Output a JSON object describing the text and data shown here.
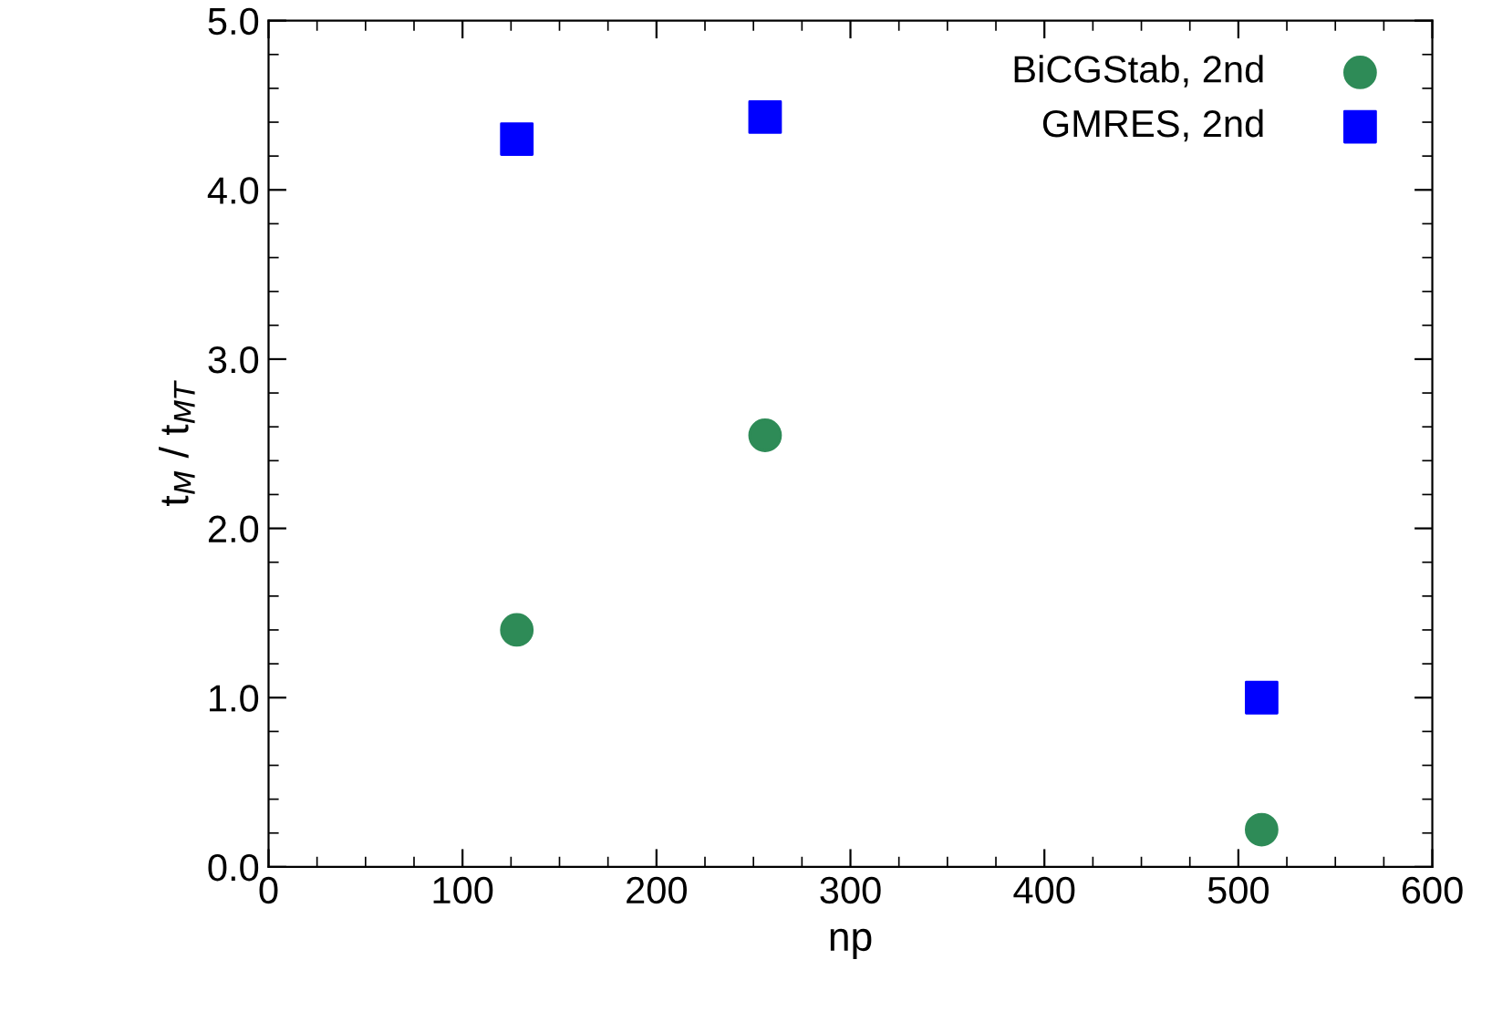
{
  "chart_data": {
    "type": "scatter",
    "xlabel": "np",
    "ylabel": "t$_{M}$ / t$_{MT}$",
    "series": [
      {
        "name": "BiCGStab, 2nd",
        "color": "#2e8b57",
        "marker": "circle",
        "x": [
          128,
          256,
          512
        ],
        "values": [
          1.4,
          2.55,
          0.22
        ]
      },
      {
        "name": "GMRES, 2nd",
        "color": "#0000ff",
        "marker": "square",
        "x": [
          128,
          256,
          512
        ],
        "values": [
          4.3,
          4.43,
          1.0
        ]
      }
    ],
    "xlim": [
      0,
      600
    ],
    "xticks": [
      0,
      100,
      200,
      300,
      400,
      500,
      600
    ],
    "ylim": [
      0,
      5
    ],
    "yticks": [
      {
        "value": 0,
        "label": "0.0"
      },
      {
        "value": 1,
        "label": "1.0"
      },
      {
        "value": 2,
        "label": "2.0"
      },
      {
        "value": 3,
        "label": "3.0"
      },
      {
        "value": 4,
        "label": "4.0"
      },
      {
        "value": 5,
        "label": "5.0"
      }
    ],
    "legend": "top right",
    "grid": false
  }
}
